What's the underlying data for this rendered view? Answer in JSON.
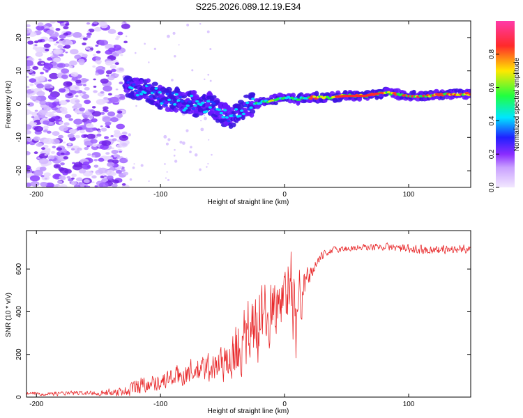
{
  "title": "S225.2026.089.12.19.E34",
  "chart_data": [
    {
      "type": "heatmap",
      "name": "spectrogram",
      "xlabel": "Height of straight line (km)",
      "ylabel": "Frequency (Hz)",
      "xlim": [
        -208,
        150
      ],
      "ylim": [
        -25,
        25
      ],
      "xticks": [
        -200,
        -100,
        0,
        100
      ],
      "yticks": [
        -20,
        -10,
        0,
        10,
        20
      ],
      "colorbar": {
        "label": "Normalized spectral amplitude",
        "range": [
          0,
          1
        ],
        "ticks": [
          0.0,
          0.2,
          0.4,
          0.6,
          0.8
        ],
        "colors": [
          "#f2e8ff",
          "#9a40ff",
          "#3010ff",
          "#00e0ff",
          "#20ff40",
          "#ffe000",
          "#ff3030",
          "#ff40b0"
        ]
      },
      "noise_region_km": [
        -208,
        -128
      ],
      "ridge": [
        {
          "x": -125,
          "f": 5.5
        },
        {
          "x": -118,
          "f": 4.5
        },
        {
          "x": -110,
          "f": 4.0
        },
        {
          "x": -102,
          "f": 2.5
        },
        {
          "x": -95,
          "f": 1.5
        },
        {
          "x": -88,
          "f": 1.5
        },
        {
          "x": -82,
          "f": 0.0
        },
        {
          "x": -75,
          "f": 1.0
        },
        {
          "x": -68,
          "f": -1.5
        },
        {
          "x": -60,
          "f": 0.5
        },
        {
          "x": -52,
          "f": -2.5
        },
        {
          "x": -45,
          "f": -4.0
        },
        {
          "x": -40,
          "f": -3.5
        },
        {
          "x": -34,
          "f": -1.0
        },
        {
          "x": -28,
          "f": -0.5
        },
        {
          "x": -20,
          "f": 0.5
        },
        {
          "x": -12,
          "f": 1.0
        },
        {
          "x": -5,
          "f": 1.5
        },
        {
          "x": 0,
          "f": 2.0
        },
        {
          "x": 10,
          "f": 1.5
        },
        {
          "x": 20,
          "f": 2.0
        },
        {
          "x": 35,
          "f": 2.0
        },
        {
          "x": 50,
          "f": 2.5
        },
        {
          "x": 65,
          "f": 2.5
        },
        {
          "x": 80,
          "f": 3.5
        },
        {
          "x": 90,
          "f": 3.0
        },
        {
          "x": 100,
          "f": 2.5
        },
        {
          "x": 115,
          "f": 2.5
        },
        {
          "x": 130,
          "f": 3.0
        },
        {
          "x": 150,
          "f": 3.0
        }
      ]
    },
    {
      "type": "line",
      "name": "snr",
      "xlabel": "Height of straight line (km)",
      "ylabel": "SNR (10 * v/v)",
      "xlim": [
        -208,
        150
      ],
      "ylim": [
        0,
        780
      ],
      "xticks": [
        -200,
        -100,
        0,
        100
      ],
      "yticks": [
        0,
        200,
        400,
        600
      ],
      "color": "#e8282a",
      "envelope": {
        "x": [
          -208,
          -150,
          -125,
          -120,
          -115,
          -100,
          -80,
          -60,
          -50,
          -40,
          -30,
          -25,
          -20,
          -15,
          -10,
          -5,
          0,
          5,
          8,
          10,
          12,
          15,
          20,
          25,
          30,
          35,
          40,
          50,
          60,
          80,
          90,
          100,
          120,
          150
        ],
        "mean": [
          15,
          20,
          30,
          50,
          60,
          75,
          110,
          140,
          160,
          200,
          280,
          330,
          360,
          380,
          400,
          430,
          480,
          500,
          450,
          330,
          420,
          500,
          570,
          620,
          660,
          680,
          690,
          695,
          700,
          705,
          700,
          690,
          690,
          695
        ],
        "amp": [
          10,
          15,
          35,
          60,
          50,
          50,
          70,
          90,
          110,
          140,
          170,
          180,
          190,
          160,
          140,
          130,
          120,
          180,
          250,
          230,
          160,
          120,
          60,
          40,
          25,
          20,
          20,
          20,
          20,
          20,
          25,
          30,
          25,
          25
        ]
      }
    }
  ]
}
